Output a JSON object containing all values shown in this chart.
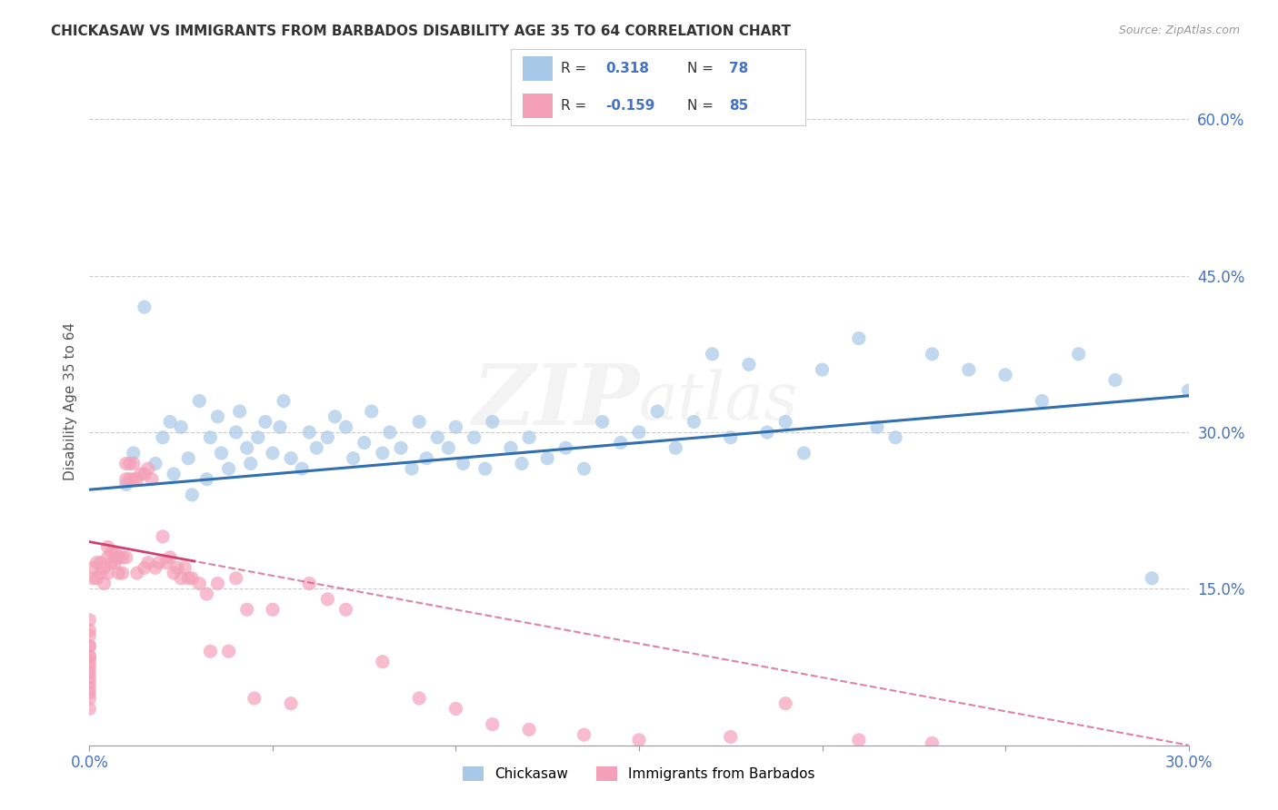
{
  "title": "CHICKASAW VS IMMIGRANTS FROM BARBADOS DISABILITY AGE 35 TO 64 CORRELATION CHART",
  "source": "Source: ZipAtlas.com",
  "ylabel": "Disability Age 35 to 64",
  "watermark": "ZIPatlas",
  "xlim": [
    0.0,
    0.3
  ],
  "ylim": [
    0.0,
    0.66
  ],
  "xticks": [
    0.0,
    0.05,
    0.1,
    0.15,
    0.2,
    0.25,
    0.3
  ],
  "yticks_right": [
    0.15,
    0.3,
    0.45,
    0.6
  ],
  "yticklabels_right": [
    "15.0%",
    "30.0%",
    "45.0%",
    "60.0%"
  ],
  "blue_color": "#a8c8e8",
  "pink_color": "#f4a0b8",
  "blue_line_color": "#3070b0",
  "pink_line_color": "#d04070",
  "R1": 0.318,
  "N1": 78,
  "R2": -0.159,
  "N2": 85,
  "blue_intercept": 0.245,
  "blue_slope": 0.3,
  "pink_intercept": 0.195,
  "pink_slope": -0.65,
  "blue_x": [
    0.01,
    0.012,
    0.015,
    0.018,
    0.02,
    0.022,
    0.023,
    0.025,
    0.027,
    0.028,
    0.03,
    0.032,
    0.033,
    0.035,
    0.036,
    0.038,
    0.04,
    0.041,
    0.043,
    0.044,
    0.046,
    0.048,
    0.05,
    0.052,
    0.053,
    0.055,
    0.058,
    0.06,
    0.062,
    0.065,
    0.067,
    0.07,
    0.072,
    0.075,
    0.077,
    0.08,
    0.082,
    0.085,
    0.088,
    0.09,
    0.092,
    0.095,
    0.098,
    0.1,
    0.102,
    0.105,
    0.108,
    0.11,
    0.115,
    0.118,
    0.12,
    0.125,
    0.13,
    0.135,
    0.14,
    0.145,
    0.15,
    0.155,
    0.16,
    0.165,
    0.17,
    0.175,
    0.18,
    0.185,
    0.19,
    0.195,
    0.2,
    0.21,
    0.215,
    0.22,
    0.23,
    0.24,
    0.25,
    0.26,
    0.27,
    0.28,
    0.29,
    0.3
  ],
  "blue_y": [
    0.25,
    0.28,
    0.42,
    0.27,
    0.295,
    0.31,
    0.26,
    0.305,
    0.275,
    0.24,
    0.33,
    0.255,
    0.295,
    0.315,
    0.28,
    0.265,
    0.3,
    0.32,
    0.285,
    0.27,
    0.295,
    0.31,
    0.28,
    0.305,
    0.33,
    0.275,
    0.265,
    0.3,
    0.285,
    0.295,
    0.315,
    0.305,
    0.275,
    0.29,
    0.32,
    0.28,
    0.3,
    0.285,
    0.265,
    0.31,
    0.275,
    0.295,
    0.285,
    0.305,
    0.27,
    0.295,
    0.265,
    0.31,
    0.285,
    0.27,
    0.295,
    0.275,
    0.285,
    0.265,
    0.31,
    0.29,
    0.3,
    0.32,
    0.285,
    0.31,
    0.375,
    0.295,
    0.365,
    0.3,
    0.31,
    0.28,
    0.36,
    0.39,
    0.305,
    0.295,
    0.375,
    0.36,
    0.355,
    0.33,
    0.375,
    0.35,
    0.16,
    0.34
  ],
  "pink_x": [
    0.0,
    0.0,
    0.0,
    0.0,
    0.0,
    0.0,
    0.0,
    0.0,
    0.0,
    0.0,
    0.0,
    0.0,
    0.0,
    0.0,
    0.0,
    0.0,
    0.001,
    0.001,
    0.002,
    0.002,
    0.003,
    0.003,
    0.004,
    0.004,
    0.005,
    0.005,
    0.005,
    0.006,
    0.006,
    0.007,
    0.007,
    0.008,
    0.008,
    0.009,
    0.009,
    0.01,
    0.01,
    0.01,
    0.011,
    0.011,
    0.012,
    0.012,
    0.013,
    0.013,
    0.014,
    0.015,
    0.015,
    0.016,
    0.016,
    0.017,
    0.018,
    0.019,
    0.02,
    0.021,
    0.022,
    0.023,
    0.024,
    0.025,
    0.026,
    0.027,
    0.028,
    0.03,
    0.032,
    0.033,
    0.035,
    0.038,
    0.04,
    0.043,
    0.045,
    0.05,
    0.055,
    0.06,
    0.065,
    0.07,
    0.08,
    0.09,
    0.1,
    0.11,
    0.12,
    0.135,
    0.15,
    0.175,
    0.19,
    0.21,
    0.23
  ],
  "pink_y": [
    0.095,
    0.085,
    0.08,
    0.07,
    0.06,
    0.05,
    0.11,
    0.12,
    0.095,
    0.105,
    0.085,
    0.075,
    0.065,
    0.055,
    0.045,
    0.035,
    0.17,
    0.16,
    0.175,
    0.16,
    0.175,
    0.165,
    0.17,
    0.155,
    0.19,
    0.18,
    0.165,
    0.185,
    0.175,
    0.185,
    0.175,
    0.18,
    0.165,
    0.18,
    0.165,
    0.27,
    0.255,
    0.18,
    0.27,
    0.255,
    0.27,
    0.255,
    0.255,
    0.165,
    0.26,
    0.26,
    0.17,
    0.265,
    0.175,
    0.255,
    0.17,
    0.175,
    0.2,
    0.175,
    0.18,
    0.165,
    0.17,
    0.16,
    0.17,
    0.16,
    0.16,
    0.155,
    0.145,
    0.09,
    0.155,
    0.09,
    0.16,
    0.13,
    0.045,
    0.13,
    0.04,
    0.155,
    0.14,
    0.13,
    0.08,
    0.045,
    0.035,
    0.02,
    0.015,
    0.01,
    0.005,
    0.008,
    0.04,
    0.005,
    0.002
  ]
}
